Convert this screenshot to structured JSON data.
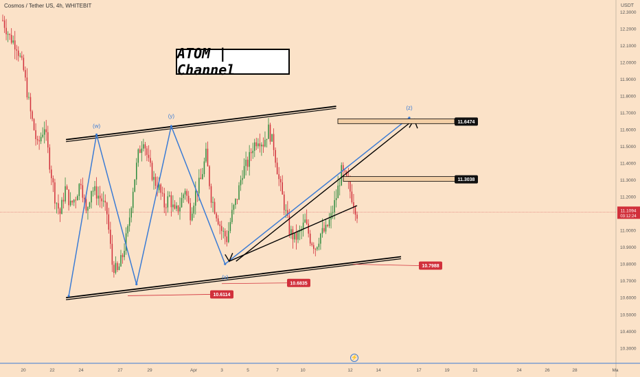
{
  "header": {
    "symbol_line": "Cosmos / Tether US, 4h, WHITEBIT",
    "currency": "USDT"
  },
  "overlay": {
    "title": "ATOM | Channel"
  },
  "colors": {
    "background": "#fbe2c8",
    "bull": "#2e8b3d",
    "bear": "#d1303b",
    "wave": "#3a7bd5",
    "channel": "#000000"
  },
  "chart_data": {
    "type": "candlestick",
    "timeframe": "4h",
    "ylim": [
      10.23,
      12.35
    ],
    "y_ticks": [
      "12.3000",
      "12.2000",
      "12.1000",
      "12.0000",
      "11.9000",
      "11.8000",
      "11.7000",
      "11.6000",
      "11.5000",
      "11.4000",
      "11.3000",
      "11.2000",
      "11.1000",
      "11.0000",
      "10.9000",
      "10.8000",
      "10.7000",
      "10.6000",
      "10.5000",
      "10.4000",
      "10.3000"
    ],
    "x_ticks": [
      "20",
      "22",
      "24",
      "27",
      "29",
      "Apr",
      "3",
      "5",
      "7",
      "10",
      "12",
      "14",
      "17",
      "19",
      "21",
      "24",
      "26",
      "28",
      "Ma"
    ],
    "current_price": "11.1094",
    "countdown": "03:12:24",
    "price_labels": {
      "upper_target": "11.6474",
      "resistance": "11.3038",
      "low_a": "10.6114",
      "low_b": "10.6835",
      "low_c": "10.7988"
    },
    "wave_labels": [
      "(w)",
      "(y)",
      "(x)",
      "(z)"
    ],
    "close_path": [
      [
        0,
        12.25
      ],
      [
        4,
        12.15
      ],
      [
        8,
        12.1
      ],
      [
        12,
        11.95
      ],
      [
        16,
        11.7
      ],
      [
        20,
        11.5
      ],
      [
        24,
        11.62
      ],
      [
        27,
        11.4
      ],
      [
        30,
        11.2
      ],
      [
        33,
        11.1
      ],
      [
        36,
        11.25
      ],
      [
        39,
        11.15
      ],
      [
        42,
        11.2
      ],
      [
        45,
        11.3
      ],
      [
        48,
        11.1
      ],
      [
        51,
        11.25
      ],
      [
        54,
        11.22
      ],
      [
        57,
        11.18
      ],
      [
        60,
        11.1
      ],
      [
        63,
        10.8
      ],
      [
        66,
        10.75
      ],
      [
        69,
        10.85
      ],
      [
        72,
        11.0
      ],
      [
        75,
        11.25
      ],
      [
        78,
        11.45
      ],
      [
        81,
        11.55
      ],
      [
        84,
        11.4
      ],
      [
        87,
        11.3
      ],
      [
        90,
        11.25
      ],
      [
        93,
        11.15
      ],
      [
        96,
        11.2
      ],
      [
        99,
        11.1
      ],
      [
        102,
        11.15
      ],
      [
        105,
        11.25
      ],
      [
        108,
        11.1
      ],
      [
        111,
        11.22
      ],
      [
        114,
        11.3
      ],
      [
        117,
        11.45
      ],
      [
        120,
        11.2
      ],
      [
        123,
        11.1
      ],
      [
        126,
        11.0
      ],
      [
        129,
        10.95
      ],
      [
        132,
        11.1
      ],
      [
        135,
        11.2
      ],
      [
        138,
        11.35
      ],
      [
        141,
        11.4
      ],
      [
        144,
        11.5
      ],
      [
        147,
        11.55
      ],
      [
        150,
        11.52
      ],
      [
        153,
        11.6
      ],
      [
        156,
        11.5
      ],
      [
        159,
        11.3
      ],
      [
        162,
        11.15
      ],
      [
        165,
        11.0
      ],
      [
        168,
        10.95
      ],
      [
        171,
        10.98
      ],
      [
        174,
        11.05
      ],
      [
        177,
        10.95
      ],
      [
        180,
        10.9
      ],
      [
        183,
        10.98
      ],
      [
        186,
        11.0
      ],
      [
        189,
        11.08
      ],
      [
        192,
        11.2
      ],
      [
        195,
        11.35
      ],
      [
        198,
        11.3
      ],
      [
        201,
        11.2
      ],
      [
        204,
        11.1
      ]
    ],
    "candle_count": 205,
    "index_range": [
      0,
      204
    ],
    "waves": [
      {
        "points": [
          [
            38,
            10.61
          ],
          [
            54,
            11.57
          ],
          [
            77,
            10.68
          ],
          [
            97,
            11.62
          ],
          [
            128,
            10.8
          ],
          [
            144,
            11.67
          ]
        ]
      }
    ],
    "channel": {
      "upper": [
        [
          38,
          11.54
        ],
        [
          154,
          11.73
        ]
      ],
      "lower": [
        [
          38,
          10.6
        ],
        [
          170,
          10.86
        ]
      ]
    },
    "projection_arrow": [
      [
        128,
        10.8
      ],
      [
        144,
        11.66
      ]
    ]
  }
}
